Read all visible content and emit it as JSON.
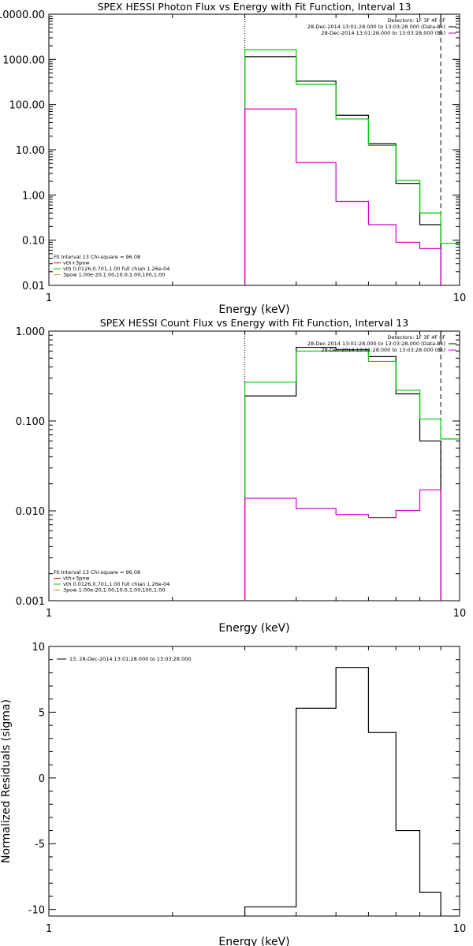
{
  "chart_data": [
    {
      "type": "line",
      "title": "SPEX HESSI Photon Flux vs Energy with Fit Function, Interval 13",
      "xlabel": "Energy (keV)",
      "ylabel": "",
      "xscale": "log",
      "yscale": "log",
      "xlim": [
        1,
        10
      ],
      "ylim": [
        0.01,
        10000
      ],
      "x_tick_labels": [
        "1",
        "10"
      ],
      "y_tick_labels": [
        "0.01",
        "0.10",
        "1.00",
        "10.00",
        "100.00",
        "1000.00",
        "10000.00"
      ],
      "y_ticks": [
        0.01,
        0.1,
        1,
        10,
        100,
        1000,
        10000
      ],
      "grid": false,
      "vlines": [
        {
          "x": 3.0,
          "style": "dotted",
          "color": "#000000"
        },
        {
          "x": 9.0,
          "style": "dashed",
          "color": "#000000"
        }
      ],
      "bin_edges": [
        3.0,
        3.5,
        4.0,
        4.5,
        5.0,
        5.5,
        6.0,
        6.5,
        7.0,
        7.5,
        8.0,
        8.5,
        9.0,
        9.5,
        10.0
      ],
      "legend_top": [
        "Detectors: 1F 3F 4F 8F",
        "28-Dec-2014 13:01:28.000 to 13:03:28.000 (Data-Bk)",
        "28-Dec-2014 13:01:28.000 to 13:03:28.000 (Bk)"
      ],
      "legend_top_colors": [
        "",
        "#000000",
        "#d000d0"
      ],
      "legend_bottom": [
        "Fit Interval 13   Chi-square = 96.08",
        "vth+3pow",
        "vth 0.0126,0.701,1.00  full chian 1.26e-04",
        "3pow 1.00e-20,1.00,10.0,1.00,100,1.00"
      ],
      "legend_bottom_colors": [
        "",
        "#d00000",
        "#00c800",
        "#c8a000"
      ],
      "series": [
        {
          "name": "Data-Bk",
          "color": "#000000",
          "values": [
            1150,
            1150,
            330,
            330,
            58,
            58,
            13.5,
            13.5,
            1.8,
            1.8,
            0.22,
            0.22,
            null,
            null
          ]
        },
        {
          "name": "vth",
          "color": "#00cc00",
          "values": [
            1650,
            1650,
            280,
            280,
            48,
            48,
            12.5,
            12.5,
            2.1,
            2.1,
            0.4,
            0.4,
            0.085,
            0.085
          ]
        },
        {
          "name": "Bk",
          "color": "#cc00cc",
          "values": [
            80,
            80,
            5.2,
            5.2,
            0.72,
            0.72,
            0.22,
            0.22,
            0.09,
            0.09,
            0.065,
            0.065,
            null,
            null
          ]
        }
      ]
    },
    {
      "type": "line",
      "title": "SPEX HESSI Count Flux vs Energy with Fit Function, Interval 13",
      "xlabel": "Energy (keV)",
      "ylabel": "",
      "xscale": "log",
      "yscale": "log",
      "xlim": [
        1,
        10
      ],
      "ylim": [
        0.001,
        1
      ],
      "x_tick_labels": [
        "1",
        "10"
      ],
      "y_tick_labels": [
        "0.001",
        "0.010",
        "0.100",
        "1.000"
      ],
      "y_ticks": [
        0.001,
        0.01,
        0.1,
        1
      ],
      "grid": false,
      "vlines": [
        {
          "x": 3.0,
          "style": "dotted",
          "color": "#000000"
        },
        {
          "x": 9.0,
          "style": "dashed",
          "color": "#000000"
        }
      ],
      "bin_edges": [
        3.0,
        3.5,
        4.0,
        4.5,
        5.0,
        5.5,
        6.0,
        6.5,
        7.0,
        7.5,
        8.0,
        8.5,
        9.0,
        9.5,
        10.0
      ],
      "legend_top": [
        "Detectors: 1F 3F 4F 8F",
        "28-Dec-2014 13:01:28.000 to 13:03:28.000 (Data-Bk)",
        "28-Dec-2014 13:01:28.000 to 13:03:28.000 (Bk)"
      ],
      "legend_top_colors": [
        "",
        "#000000",
        "#d000d0"
      ],
      "legend_bottom": [
        "Fit Interval 13   Chi-square = 96.08",
        "vth+3pow",
        "vth 0.0126,0.701,1.00  full chian 1.26e-04",
        "3pow 1.00e-20,1.00,10.0,1.00,100,1.00"
      ],
      "legend_bottom_colors": [
        "",
        "#d00000",
        "#00c800",
        "#c8a000"
      ],
      "series": [
        {
          "name": "Data-Bk",
          "color": "#000000",
          "values": [
            0.19,
            0.19,
            0.66,
            0.66,
            0.62,
            0.62,
            0.52,
            0.52,
            0.2,
            0.2,
            0.06,
            0.06,
            null,
            null
          ]
        },
        {
          "name": "vth",
          "color": "#00cc00",
          "values": [
            0.27,
            0.27,
            0.6,
            0.6,
            0.6,
            0.6,
            0.46,
            0.46,
            0.22,
            0.22,
            0.105,
            0.105,
            0.063,
            0.063
          ]
        },
        {
          "name": "Bk",
          "color": "#cc00cc",
          "values": [
            0.0138,
            0.0138,
            0.0106,
            0.0106,
            0.0091,
            0.0091,
            0.0084,
            0.0084,
            0.0101,
            0.0101,
            0.0171,
            0.0171,
            null,
            null
          ]
        }
      ]
    },
    {
      "type": "line",
      "title": "",
      "xlabel": "Energy (keV)",
      "ylabel": "Normalized Residuals (sigma)",
      "xscale": "log",
      "yscale": "linear",
      "xlim": [
        1,
        10
      ],
      "ylim": [
        -10.5,
        10
      ],
      "x_tick_labels": [
        "1",
        "10"
      ],
      "y_tick_labels": [
        "10",
        "5",
        "0",
        "-5",
        "-10"
      ],
      "y_ticks": [
        10,
        5,
        0,
        -5,
        -10
      ],
      "grid": false,
      "vlines": [],
      "bin_edges": [
        3.0,
        3.5,
        4.0,
        4.5,
        5.0,
        5.5,
        6.0,
        6.5,
        7.0,
        7.5,
        8.0,
        8.5,
        9.0,
        9.5,
        10.0
      ],
      "legend_top": [
        "13. 28-Dec-2014 13:01:28.000 to 13:03:28.000"
      ],
      "legend_top_colors": [
        "#000000"
      ],
      "legend_bottom": [],
      "legend_bottom_colors": [],
      "series": [
        {
          "name": "13. 28-Dec-2014 13:01:28.000 to 13:03:28.000",
          "color": "#000000",
          "values": [
            -9.8,
            -9.8,
            5.3,
            5.3,
            8.4,
            8.4,
            3.45,
            3.45,
            -4.0,
            -4.0,
            -8.7,
            -8.7,
            null,
            null
          ]
        }
      ]
    }
  ]
}
